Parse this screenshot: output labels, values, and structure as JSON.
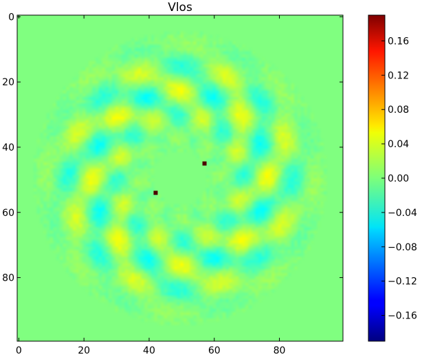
{
  "chart_data": {
    "type": "heatmap",
    "title": "Vlos",
    "xlabel": "",
    "ylabel": "",
    "x_range": [
      0,
      99
    ],
    "y_range": [
      0,
      99
    ],
    "x_ticks": [
      0,
      20,
      40,
      60,
      80
    ],
    "y_ticks": [
      0,
      20,
      40,
      60,
      80
    ],
    "y_axis_inverted": true,
    "colormap": "jet",
    "colorbar": {
      "vmin": -0.19,
      "vmax": 0.19,
      "ticks": [
        -0.16,
        -0.12,
        -0.08,
        -0.04,
        0.0,
        0.04,
        0.08,
        0.12,
        0.16
      ],
      "tick_labels": [
        "−0.16",
        "−0.12",
        "−0.08",
        "−0.04",
        "0.00",
        "0.04",
        "0.08",
        "0.12",
        "0.16"
      ]
    },
    "background_value": 0.0,
    "pattern": {
      "center": [
        49.5,
        49.5
      ],
      "inner_radius": 12,
      "outer_radius": 45,
      "lobes": 8,
      "amplitude": 0.04
    },
    "features": [
      {
        "x": 57,
        "y": 45,
        "value": 0.19
      },
      {
        "x": 42,
        "y": 54,
        "value": 0.19
      }
    ],
    "grid": false,
    "legend": "none"
  }
}
